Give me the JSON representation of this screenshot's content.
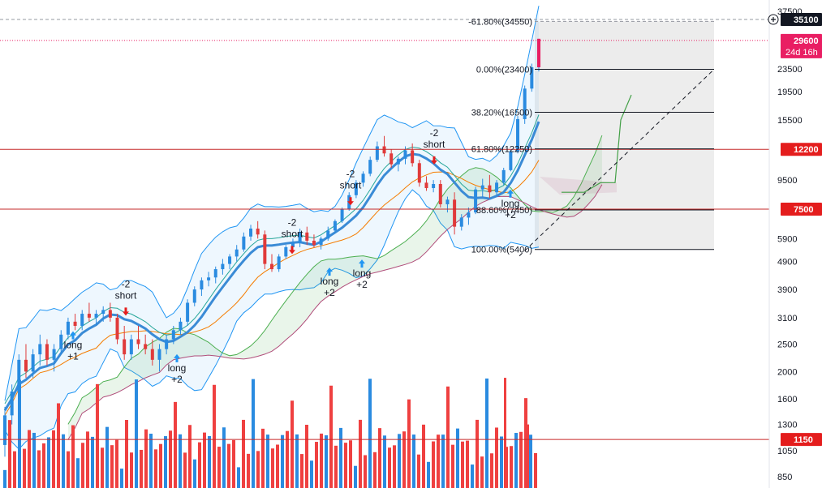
{
  "chart_data": {
    "type": "candlestick",
    "scale": "log",
    "grid": false,
    "y_tick_labels": [
      37500,
      23500,
      19500,
      15500,
      9500,
      5900,
      4900,
      3900,
      3100,
      2500,
      2000,
      1600,
      1300,
      1050,
      850
    ],
    "highlighted_levels": [
      {
        "label": "35100",
        "value": 35100,
        "style": "dashed-gray",
        "badge_color": "#131722"
      },
      {
        "label": "29600",
        "sublabel": "24d 16h",
        "value": 29600,
        "style": "dotted-red",
        "badge_color": "#e91e63"
      },
      {
        "label": "12200",
        "value": 12200,
        "style": "solid-red",
        "badge_color": "#e41d1d"
      },
      {
        "label": "7500",
        "value": 7500,
        "style": "solid-red",
        "badge_color": "#e41d1d"
      },
      {
        "label": "1150",
        "value": 1150,
        "style": "solid-red",
        "badge_color": "#e41d1d"
      }
    ],
    "fibonacci": {
      "levels": [
        {
          "label": "-61.80%(34550)",
          "value": 34550
        },
        {
          "label": "0.00%(23400)",
          "value": 23400
        },
        {
          "label": "38.20%(16500)",
          "value": 16500
        },
        {
          "label": "61.80%(12250)",
          "value": 12250
        },
        {
          "label": "88.60%(7450)",
          "value": 7450
        },
        {
          "label": "100.00%(5400)",
          "value": 5400
        }
      ]
    },
    "signals": [
      {
        "direction": "long",
        "lines": [
          "long",
          "+1"
        ],
        "price": 2650
      },
      {
        "direction": "short",
        "lines": [
          "-2",
          "short"
        ],
        "price": 3300
      },
      {
        "direction": "long",
        "lines": [
          "long",
          "+2"
        ],
        "price": 2200
      },
      {
        "direction": "short",
        "lines": [
          "-2",
          "short"
        ],
        "price": 5450
      },
      {
        "direction": "long",
        "lines": [
          "long",
          "+2"
        ],
        "price": 4450
      },
      {
        "direction": "long",
        "lines": [
          "long",
          "+2"
        ],
        "price": 4750
      },
      {
        "direction": "short",
        "lines": [
          "-2",
          "short"
        ],
        "price": 8100
      },
      {
        "direction": "short",
        "lines": [
          "-2",
          "short"
        ],
        "price": 11300
      },
      {
        "direction": "long",
        "lines": [
          "long",
          "+2"
        ],
        "price": 8400
      }
    ],
    "candles": [
      [
        1100,
        1500,
        1000,
        1400
      ],
      [
        1400,
        1800,
        1300,
        1700
      ],
      [
        1700,
        2300,
        1600,
        2200
      ],
      [
        2200,
        2500,
        1900,
        2000
      ],
      [
        2000,
        2400,
        1900,
        2300
      ],
      [
        2300,
        2700,
        2100,
        2500
      ],
      [
        2500,
        2600,
        2100,
        2200
      ],
      [
        2200,
        2500,
        2000,
        2400
      ],
      [
        2400,
        2800,
        2300,
        2700
      ],
      [
        2700,
        3100,
        2600,
        3000
      ],
      [
        3000,
        3200,
        2800,
        2900
      ],
      [
        2900,
        3300,
        2800,
        3200
      ],
      [
        3200,
        3500,
        3000,
        3100
      ],
      [
        3100,
        3300,
        2900,
        3200
      ],
      [
        3200,
        3400,
        3000,
        3300
      ],
      [
        3300,
        3500,
        3000,
        3100
      ],
      [
        3100,
        3200,
        2500,
        2600
      ],
      [
        2600,
        2900,
        2200,
        2300
      ],
      [
        2300,
        2700,
        2200,
        2600
      ],
      [
        2600,
        2900,
        2400,
        2500
      ],
      [
        2500,
        2700,
        2300,
        2400
      ],
      [
        2400,
        2600,
        2100,
        2200
      ],
      [
        2200,
        2500,
        2000,
        2400
      ],
      [
        2400,
        2700,
        2300,
        2600
      ],
      [
        2600,
        2900,
        2500,
        2800
      ],
      [
        2800,
        3100,
        2700,
        3000
      ],
      [
        3000,
        3600,
        2900,
        3500
      ],
      [
        3500,
        4000,
        3400,
        3900
      ],
      [
        3900,
        4300,
        3700,
        4200
      ],
      [
        4200,
        4500,
        4000,
        4300
      ],
      [
        4300,
        4700,
        4100,
        4600
      ],
      [
        4600,
        5000,
        4400,
        4800
      ],
      [
        4800,
        5200,
        4600,
        5100
      ],
      [
        5100,
        5600,
        4900,
        5400
      ],
      [
        5400,
        6200,
        5300,
        6000
      ],
      [
        6000,
        6600,
        5800,
        6400
      ],
      [
        6400,
        6800,
        5900,
        6100
      ],
      [
        6100,
        6300,
        4600,
        4800
      ],
      [
        4800,
        5200,
        4500,
        4600
      ],
      [
        4600,
        5200,
        4500,
        5100
      ],
      [
        5100,
        5600,
        5000,
        5500
      ],
      [
        5500,
        5900,
        5300,
        5700
      ],
      [
        5700,
        6400,
        5500,
        6200
      ],
      [
        6200,
        6500,
        5600,
        5800
      ],
      [
        5800,
        6100,
        5500,
        5600
      ],
      [
        5600,
        6000,
        5400,
        5900
      ],
      [
        5900,
        6500,
        5800,
        6300
      ],
      [
        6300,
        6900,
        6200,
        6800
      ],
      [
        6800,
        7600,
        6700,
        7500
      ],
      [
        7500,
        8600,
        7400,
        8400
      ],
      [
        8400,
        9500,
        8200,
        9300
      ],
      [
        9300,
        10200,
        9000,
        10000
      ],
      [
        10000,
        11500,
        9800,
        11200
      ],
      [
        11200,
        13000,
        11000,
        12500
      ],
      [
        12500,
        13600,
        11500,
        11800
      ],
      [
        11800,
        12200,
        10500,
        10800
      ],
      [
        10800,
        11500,
        10200,
        11300
      ],
      [
        11300,
        12500,
        10800,
        12100
      ],
      [
        12100,
        12800,
        10600,
        10900
      ],
      [
        10900,
        11200,
        9000,
        9300
      ],
      [
        9300,
        9800,
        8700,
        8900
      ],
      [
        8900,
        9500,
        8600,
        9200
      ],
      [
        9200,
        9500,
        7600,
        7800
      ],
      [
        7800,
        8300,
        7300,
        8100
      ],
      [
        8100,
        8600,
        6100,
        6500
      ],
      [
        6500,
        7200,
        6300,
        7000
      ],
      [
        7000,
        7600,
        6600,
        7300
      ],
      [
        7300,
        9000,
        7200,
        8800
      ],
      [
        8800,
        9600,
        8300,
        9100
      ],
      [
        9100,
        9900,
        8200,
        8600
      ],
      [
        8600,
        9500,
        8400,
        9300
      ],
      [
        9300,
        10500,
        9100,
        10300
      ],
      [
        10300,
        12200,
        10200,
        12000
      ],
      [
        12000,
        16000,
        11800,
        15600
      ],
      [
        15600,
        20500,
        15000,
        20000
      ],
      [
        20000,
        24500,
        19500,
        23800
      ],
      [
        23800,
        30000,
        23000,
        29600
      ]
    ],
    "volume_bars": [
      {
        "value": 1150,
        "color": "red"
      },
      {
        "value": 1350,
        "color": "blue"
      },
      {
        "value": 1250,
        "color": "red"
      },
      {
        "value": 1900,
        "color": "red"
      },
      {
        "value": 1200,
        "color": "red"
      },
      {
        "value": 1300,
        "color": "red"
      },
      {
        "value": 1300,
        "color": "red"
      },
      {
        "value": 1150,
        "color": "red"
      }
    ],
    "projection": {
      "cloud_to": 9300,
      "path_points": [
        8600,
        8600,
        9300,
        9300,
        15500,
        19000
      ]
    }
  }
}
